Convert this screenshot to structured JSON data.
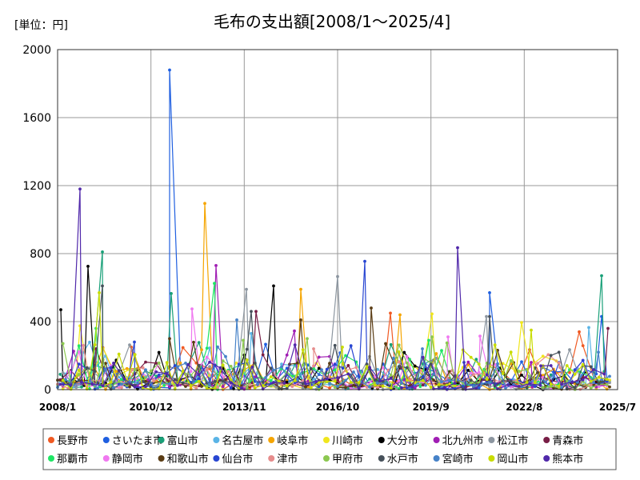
{
  "unit_label": "[単位：円]",
  "chart_data": {
    "type": "line",
    "title": "毛布の支出額[2008/1〜2025/4]",
    "xlabel": "",
    "ylabel": "",
    "ylim": [
      0,
      2000
    ],
    "yticks": [
      0,
      400,
      800,
      1200,
      1600,
      2000
    ],
    "xlim": [
      2008.0,
      2025.5
    ],
    "xticks": [
      {
        "value": 2008.0,
        "label": "2008/1"
      },
      {
        "value": 2010.917,
        "label": "2010/12"
      },
      {
        "value": 2013.833,
        "label": "2013/11"
      },
      {
        "value": 2016.75,
        "label": "2016/10"
      },
      {
        "value": 2019.667,
        "label": "2019/9"
      },
      {
        "value": 2022.583,
        "label": "2022/8"
      },
      {
        "value": 2025.5,
        "label": "2025/7"
      }
    ],
    "grid": true,
    "legend_position": "bottom",
    "series": [
      {
        "name": "長野市",
        "color": "#f05a23",
        "peaks": [
          {
            "x": 2018.4,
            "y": 450
          },
          {
            "x": 2024.3,
            "y": 340
          },
          {
            "x": 2010.3,
            "y": 250
          }
        ]
      },
      {
        "name": "さいたま市",
        "color": "#1f5fe0",
        "peaks": [
          {
            "x": 2011.5,
            "y": 1880
          },
          {
            "x": 2021.5,
            "y": 570
          },
          {
            "x": 2025.0,
            "y": 430
          }
        ]
      },
      {
        "name": "富山市",
        "color": "#19a078",
        "peaks": [
          {
            "x": 2009.4,
            "y": 810
          },
          {
            "x": 2025.0,
            "y": 670
          },
          {
            "x": 2011.55,
            "y": 565
          }
        ]
      },
      {
        "name": "名古屋市",
        "color": "#5ab4e6",
        "peaks": [
          {
            "x": 2014.05,
            "y": 330
          },
          {
            "x": 2024.6,
            "y": 365
          },
          {
            "x": 2008.8,
            "y": 220
          }
        ]
      },
      {
        "name": "岐阜市",
        "color": "#f5a500",
        "peaks": [
          {
            "x": 2012.6,
            "y": 1095
          },
          {
            "x": 2015.6,
            "y": 590
          },
          {
            "x": 2018.7,
            "y": 440
          }
        ]
      },
      {
        "name": "川崎市",
        "color": "#f0e61e",
        "peaks": [
          {
            "x": 2019.7,
            "y": 445
          },
          {
            "x": 2022.5,
            "y": 395
          },
          {
            "x": 2008.7,
            "y": 375
          }
        ]
      },
      {
        "name": "大分市",
        "color": "#000000",
        "peaks": [
          {
            "x": 2008.1,
            "y": 470
          },
          {
            "x": 2008.95,
            "y": 725
          },
          {
            "x": 2014.75,
            "y": 610
          }
        ]
      },
      {
        "name": "北九州市",
        "color": "#a01eb4",
        "peaks": [
          {
            "x": 2012.95,
            "y": 730
          },
          {
            "x": 2015.4,
            "y": 345
          },
          {
            "x": 2022.8,
            "y": 160
          }
        ]
      },
      {
        "name": "松江市",
        "color": "#8c96a0",
        "peaks": [
          {
            "x": 2016.75,
            "y": 665
          },
          {
            "x": 2013.9,
            "y": 590
          },
          {
            "x": 2021.4,
            "y": 430
          }
        ]
      },
      {
        "name": "青森市",
        "color": "#781e46",
        "peaks": [
          {
            "x": 2014.2,
            "y": 460
          },
          {
            "x": 2025.2,
            "y": 360
          },
          {
            "x": 2009.2,
            "y": 240
          }
        ]
      },
      {
        "name": "那覇市",
        "color": "#1ee664",
        "peaks": [
          {
            "x": 2012.9,
            "y": 625
          },
          {
            "x": 2009.2,
            "y": 360
          },
          {
            "x": 2019.6,
            "y": 290
          }
        ]
      },
      {
        "name": "静岡市",
        "color": "#f078f0",
        "peaks": [
          {
            "x": 2012.2,
            "y": 475
          },
          {
            "x": 2020.2,
            "y": 310
          },
          {
            "x": 2021.2,
            "y": 315
          }
        ]
      },
      {
        "name": "和歌山市",
        "color": "#5a3c14",
        "peaks": [
          {
            "x": 2017.8,
            "y": 480
          },
          {
            "x": 2011.5,
            "y": 300
          },
          {
            "x": 2015.6,
            "y": 410
          }
        ]
      },
      {
        "name": "仙台市",
        "color": "#2846d2",
        "peaks": [
          {
            "x": 2017.6,
            "y": 755
          },
          {
            "x": 2020.7,
            "y": 160
          },
          {
            "x": 2010.4,
            "y": 280
          }
        ]
      },
      {
        "name": "津市",
        "color": "#e68c8c",
        "peaks": [
          {
            "x": 2008.8,
            "y": 260
          },
          {
            "x": 2016.0,
            "y": 240
          },
          {
            "x": 2023.7,
            "y": 130
          }
        ]
      },
      {
        "name": "甲府市",
        "color": "#8cc850",
        "peaks": [
          {
            "x": 2013.8,
            "y": 290
          },
          {
            "x": 2015.8,
            "y": 300
          },
          {
            "x": 2019.7,
            "y": 310
          }
        ]
      },
      {
        "name": "水戸市",
        "color": "#46505a",
        "peaks": [
          {
            "x": 2009.4,
            "y": 610
          },
          {
            "x": 2021.5,
            "y": 430
          },
          {
            "x": 2014.05,
            "y": 460
          }
        ]
      },
      {
        "name": "宮崎市",
        "color": "#4682c8",
        "peaks": [
          {
            "x": 2013.6,
            "y": 410
          },
          {
            "x": 2019.4,
            "y": 240
          },
          {
            "x": 2024.9,
            "y": 220
          }
        ]
      },
      {
        "name": "岡山市",
        "color": "#c8dc00",
        "peaks": [
          {
            "x": 2009.3,
            "y": 570
          },
          {
            "x": 2022.8,
            "y": 350
          },
          {
            "x": 2016.9,
            "y": 250
          }
        ]
      },
      {
        "name": "熊本市",
        "color": "#5028aa",
        "peaks": [
          {
            "x": 2008.7,
            "y": 1180
          },
          {
            "x": 2020.5,
            "y": 835
          },
          {
            "x": 2023.1,
            "y": 140
          }
        ]
      }
    ]
  }
}
